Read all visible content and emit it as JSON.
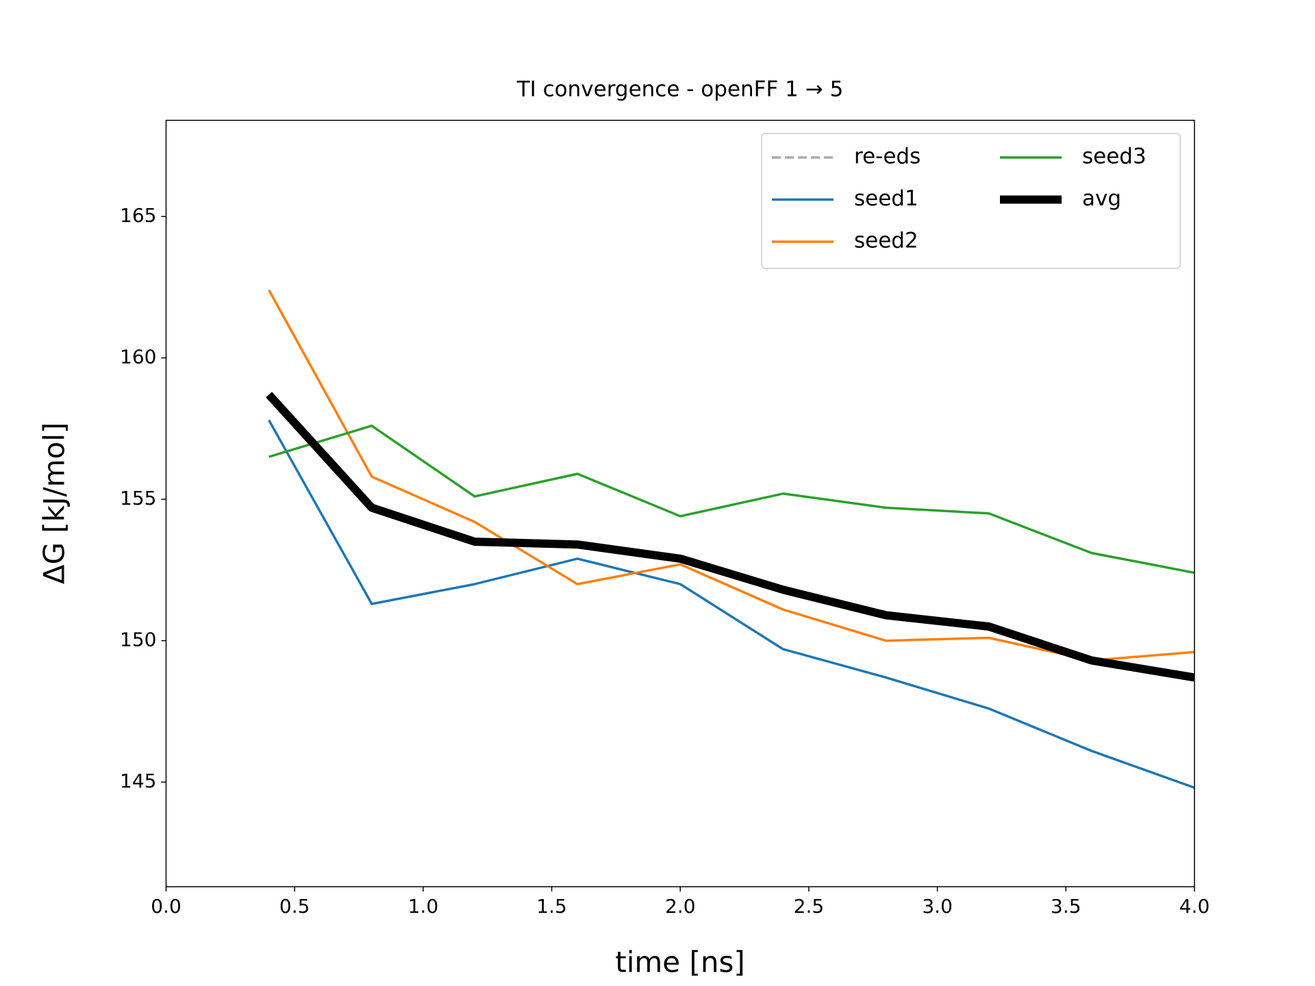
{
  "chart_data": {
    "type": "line",
    "title": "TI convergence - openFF 1 → 5",
    "xlabel": "time [ns]",
    "ylabel": "ΔG [kJ/mol]",
    "x": [
      0.4,
      0.8,
      1.2,
      1.6,
      2.0,
      2.4,
      2.8,
      3.2,
      3.6,
      4.0
    ],
    "series": [
      {
        "name": "re-eds",
        "color": "#aaaaaa",
        "dash": true,
        "width": 3.5,
        "values": [
          null,
          null,
          null,
          null,
          null,
          null,
          null,
          null,
          null,
          null
        ]
      },
      {
        "name": "seed1",
        "color": "#1f77b4",
        "width": 3.5,
        "values": [
          157.8,
          151.3,
          152.0,
          152.9,
          152.0,
          149.7,
          148.7,
          147.6,
          146.1,
          144.8
        ]
      },
      {
        "name": "seed2",
        "color": "#ff7f0e",
        "width": 3.5,
        "values": [
          162.4,
          155.8,
          154.2,
          152.0,
          152.7,
          151.1,
          150.0,
          150.1,
          149.3,
          149.6
        ]
      },
      {
        "name": "seed3",
        "color": "#2ca02c",
        "width": 3.5,
        "values": [
          156.5,
          157.6,
          155.1,
          155.9,
          154.4,
          155.2,
          154.7,
          154.5,
          153.1,
          152.4
        ]
      },
      {
        "name": "avg",
        "color": "#000000",
        "width": 12,
        "values": [
          158.7,
          154.7,
          153.5,
          153.4,
          152.9,
          151.8,
          150.9,
          150.5,
          149.3,
          148.7
        ]
      }
    ],
    "xlim": [
      0,
      4
    ],
    "xticks": [
      {
        "value": 0,
        "label": "0.0"
      },
      0.5,
      {
        "value": 1,
        "label": "1.0"
      },
      1.5,
      {
        "value": 2,
        "label": "2.0"
      },
      2.5,
      {
        "value": 3,
        "label": "3.0"
      },
      3.5,
      {
        "value": 4,
        "label": "4.0"
      }
    ],
    "ylim": [
      141.3,
      168.4
    ],
    "yticks": [
      145,
      150,
      155,
      160,
      165
    ],
    "grid": false,
    "legend": "upper right",
    "legend_columns": 2
  }
}
